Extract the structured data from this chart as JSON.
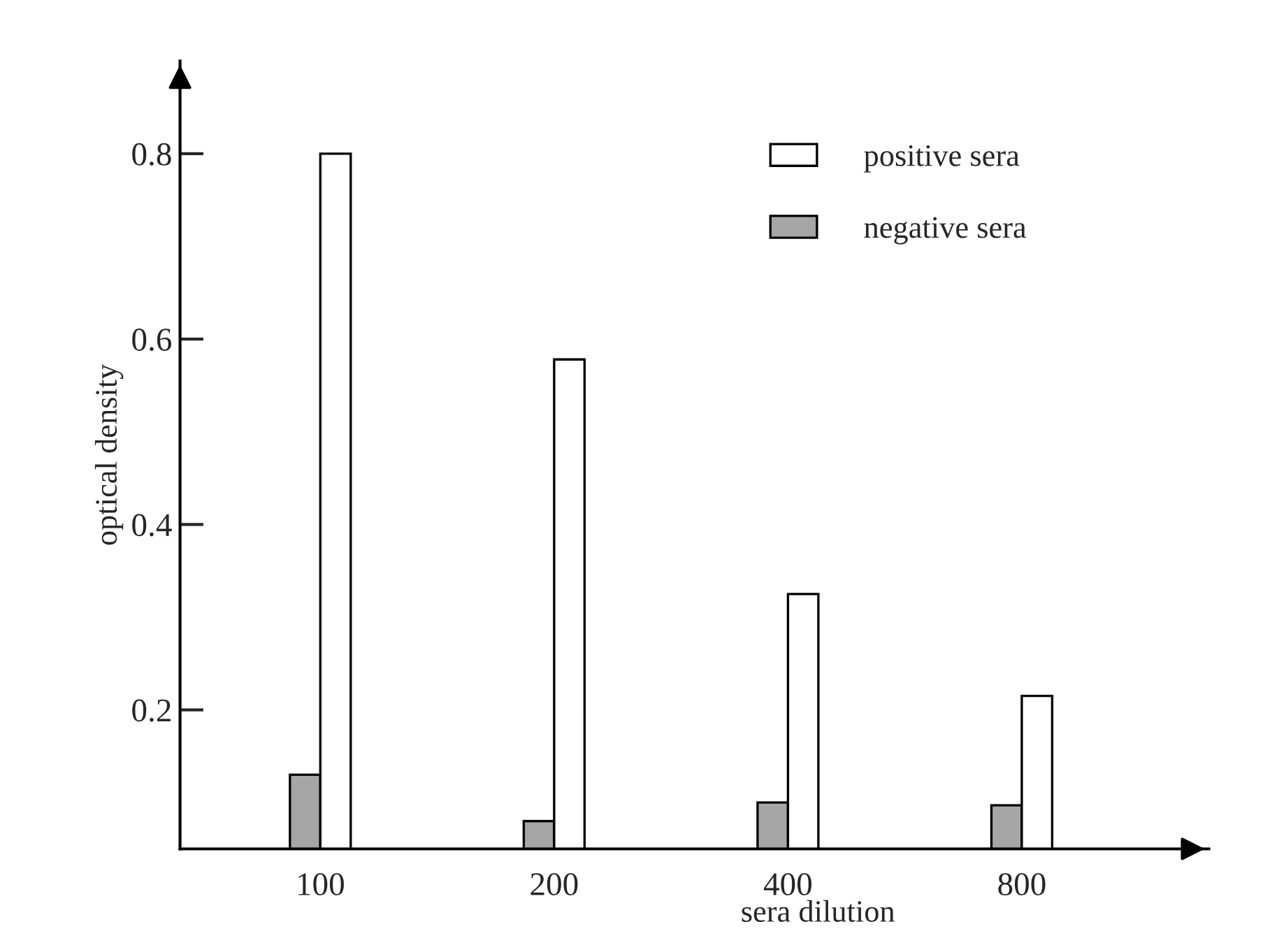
{
  "chart_data": {
    "type": "bar",
    "xlabel": "sera dilution",
    "ylabel": "optical density",
    "categories": [
      "100",
      "200",
      "400",
      "800"
    ],
    "series": [
      {
        "name": "negative sera",
        "color": "#a6a6a6",
        "values": [
          0.13,
          0.08,
          0.1,
          0.097
        ]
      },
      {
        "name": "positive sera",
        "color": "#ffffff",
        "values": [
          0.8,
          0.578,
          0.325,
          0.215
        ]
      }
    ],
    "ylim": [
      0.05,
      0.9
    ],
    "yticks": [
      0.2,
      0.4,
      0.6,
      0.8
    ],
    "grid": false,
    "legend": "top right"
  }
}
